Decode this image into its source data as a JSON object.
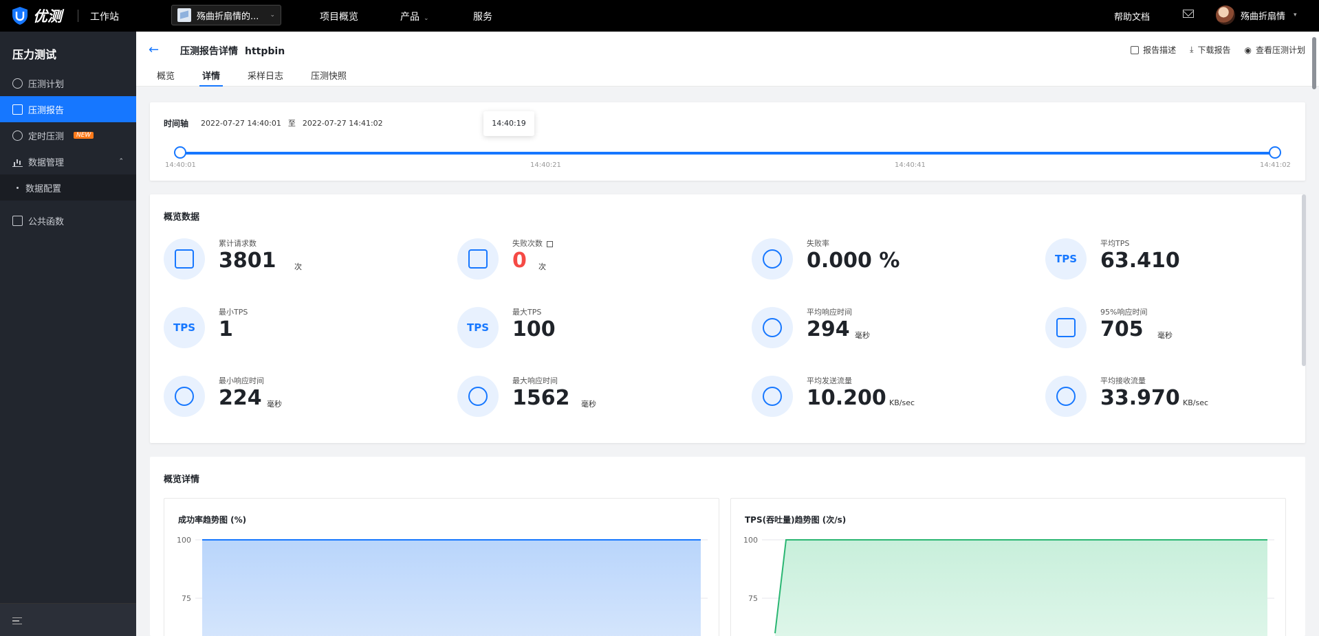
{
  "topbar": {
    "brand": "优测",
    "workbench": "工作站",
    "project": "殇曲折扇情的...",
    "nav": [
      "项目概览",
      "产品",
      "服务"
    ],
    "help": "帮助文档",
    "user": "殇曲折扇情"
  },
  "sidebar": {
    "title": "压力测试",
    "items": [
      {
        "label": "压测计划",
        "icon": "clock-check-icon"
      },
      {
        "label": "压测报告",
        "icon": "document-icon",
        "active": true
      },
      {
        "label": "定时压测",
        "icon": "clock-icon",
        "badge": "NEW"
      },
      {
        "label": "数据管理",
        "icon": "bar-chart-icon"
      },
      {
        "label": "数据配置"
      },
      {
        "label": "公共函数",
        "icon": "function-icon"
      }
    ]
  },
  "header": {
    "title": "压测报告详情",
    "name": "httpbin",
    "actions": [
      "报告描述",
      "下载报告",
      "查看压测计划"
    ],
    "tabs": [
      "概览",
      "详情",
      "采样日志",
      "压测快照"
    ],
    "active_tab": "详情"
  },
  "timeline": {
    "label": "时间轴",
    "start": "2022-07-27 14:40:01",
    "sep": "至",
    "end": "2022-07-27 14:41:02",
    "tooltip": "14:40:19",
    "ticks": [
      "14:40:01",
      "14:40:21",
      "14:40:41",
      "14:41:02"
    ]
  },
  "overview": {
    "title": "概览数据",
    "metrics": [
      {
        "label": "累计请求数",
        "value": "3801",
        "unit": "次"
      },
      {
        "label": "失败次数",
        "value": "0",
        "unit": "次"
      },
      {
        "label": "失败率",
        "value": "0.000 %",
        "unit": ""
      },
      {
        "label": "平均TPS",
        "value": "63.410",
        "unit": ""
      },
      {
        "label": "最小TPS",
        "value": "1",
        "unit": ""
      },
      {
        "label": "最大TPS",
        "value": "100",
        "unit": ""
      },
      {
        "label": "平均响应时间",
        "value": "294",
        "unit": "毫秒"
      },
      {
        "label": "95%响应时间",
        "value": "705",
        "unit": "毫秒"
      },
      {
        "label": "最小响应时间",
        "value": "224",
        "unit": "毫秒"
      },
      {
        "label": "最大响应时间",
        "value": "1562",
        "unit": "毫秒"
      },
      {
        "label": "平均发送流量",
        "value": "10.200",
        "unit": "KB/sec"
      },
      {
        "label": "平均接收流量",
        "value": "33.970",
        "unit": "KB/sec"
      }
    ],
    "tps_icon_text": "TPS"
  },
  "details": {
    "title": "概览详情",
    "chart1_title": "成功率趋势图 (%)",
    "chart2_title": "TPS(吞吐量)趋势图 (次/s)"
  },
  "chart_data": [
    {
      "type": "area",
      "title": "成功率趋势图 (%)",
      "y_ticks": [
        100,
        75
      ],
      "series": [
        {
          "values": [
            100,
            100
          ]
        }
      ],
      "color": "#1677ff"
    },
    {
      "type": "area",
      "title": "TPS(吞吐量)趋势图 (次/s)",
      "y_ticks": [
        100,
        75
      ],
      "series": [
        {
          "values": [
            60,
            100,
            100
          ]
        }
      ],
      "color": "#2ab672"
    }
  ]
}
